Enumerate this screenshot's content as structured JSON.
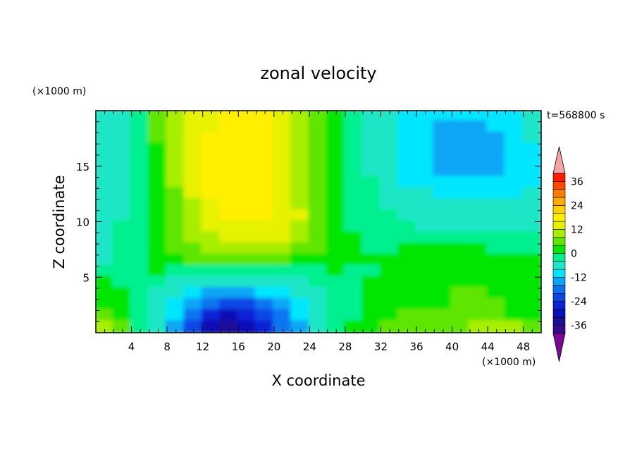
{
  "chart_data": {
    "type": "heatmap",
    "title": "zonal velocity",
    "xlabel": "X coordinate",
    "ylabel": "Z coordinate",
    "x_unit_label": "(×1000 m)",
    "y_unit_label": "(×1000 m)",
    "time_label": "t=568800 s",
    "xlim": [
      0,
      50
    ],
    "ylim": [
      0,
      20
    ],
    "x_ticks": [
      4,
      8,
      12,
      16,
      20,
      24,
      28,
      32,
      36,
      40,
      44,
      48
    ],
    "y_ticks": [
      5,
      10,
      15
    ],
    "x_tick_labels": [
      "4",
      "8",
      "12",
      "16",
      "20",
      "24",
      "28",
      "32",
      "36",
      "40",
      "44",
      "48"
    ],
    "y_tick_labels": [
      "5",
      "10",
      "15"
    ],
    "colorbar": {
      "levels": [
        -40,
        -36,
        -32,
        -28,
        -24,
        -20,
        -16,
        -12,
        -8,
        -4,
        0,
        4,
        8,
        12,
        16,
        20,
        24,
        28,
        32,
        36,
        40
      ],
      "tick_values": [
        -36,
        -24,
        -12,
        0,
        12,
        24,
        36
      ],
      "tick_labels": [
        "-36",
        "-24",
        "-12",
        "0",
        "12",
        "24",
        "36"
      ],
      "colors": [
        "#3a0a8c",
        "#1c0c96",
        "#0a10b8",
        "#0a22d6",
        "#0a46e6",
        "#0a74f0",
        "#0aa6f6",
        "#00e6ff",
        "#1ee6c6",
        "#00f090",
        "#00e600",
        "#5ee600",
        "#a8ee00",
        "#e6f200",
        "#fff000",
        "#ffd200",
        "#ffaa00",
        "#ff7a00",
        "#ff4a00",
        "#ff1a00"
      ],
      "under_color": "#7a0a96",
      "over_color": "#f5a3a3"
    },
    "field": {
      "description_of_rows": "z values from 19.5 down to 0.5, columns x from 1 to 49 step 2",
      "x": [
        1,
        3,
        5,
        7,
        9,
        11,
        13,
        15,
        17,
        19,
        21,
        23,
        25,
        27,
        29,
        31,
        33,
        35,
        37,
        39,
        41,
        43,
        45,
        47,
        49
      ],
      "z": [
        19.5,
        18.5,
        17.5,
        16.5,
        15.5,
        14.5,
        13.5,
        12.5,
        11.5,
        10.5,
        9.5,
        8.5,
        7.5,
        6.5,
        5.5,
        4.5,
        3.5,
        2.5,
        1.5,
        0.5
      ],
      "values": [
        [
          -7,
          -6,
          -2,
          4,
          8,
          12,
          14,
          16,
          16,
          16,
          14,
          10,
          4,
          0,
          -2,
          -6,
          -8,
          -10,
          -12,
          -12,
          -12,
          -12,
          -10,
          -9,
          -8
        ],
        [
          -7,
          -6,
          -2,
          4,
          9,
          13,
          15,
          17,
          17,
          16,
          14,
          10,
          4,
          0,
          -2,
          -6,
          -8,
          -10,
          -12,
          -14,
          -14,
          -14,
          -12,
          -10,
          -8
        ],
        [
          -7,
          -6,
          -2,
          4,
          9,
          13,
          16,
          18,
          18,
          16,
          14,
          10,
          4,
          0,
          -2,
          -6,
          -8,
          -10,
          -12,
          -14,
          -14,
          -14,
          -13,
          -11,
          -8
        ],
        [
          -8,
          -6,
          -2,
          3,
          9,
          13,
          16,
          18,
          18,
          17,
          14,
          10,
          4,
          0,
          -2,
          -5,
          -8,
          -10,
          -12,
          -14,
          -15,
          -15,
          -14,
          -12,
          -9
        ],
        [
          -8,
          -6,
          -2,
          3,
          8,
          13,
          17,
          19,
          18,
          17,
          14,
          10,
          4,
          0,
          -2,
          -5,
          -8,
          -10,
          -12,
          -14,
          -15,
          -15,
          -14,
          -12,
          -9
        ],
        [
          -8,
          -6,
          -2,
          2,
          8,
          13,
          17,
          18,
          18,
          17,
          14,
          10,
          4,
          0,
          -2,
          -5,
          -8,
          -10,
          -11,
          -13,
          -14,
          -14,
          -13,
          -12,
          -9
        ],
        [
          -8,
          -6,
          -2,
          2,
          8,
          13,
          17,
          18,
          18,
          17,
          14,
          10,
          5,
          0,
          -2,
          -4,
          -7,
          -9,
          -10,
          -11,
          -12,
          -12,
          -11,
          -10,
          -9
        ],
        [
          -8,
          -6,
          -2,
          2,
          7,
          12,
          16,
          17,
          18,
          17,
          14,
          10,
          5,
          0,
          -2,
          -4,
          -6,
          -7,
          -8,
          -9,
          -10,
          -10,
          -10,
          -9,
          -8
        ],
        [
          -8,
          -5,
          -1,
          2,
          6,
          11,
          15,
          17,
          18,
          17,
          15,
          11,
          5,
          1,
          -2,
          -4,
          -5,
          -6,
          -7,
          -8,
          -8,
          -8,
          -8,
          -8,
          -8
        ],
        [
          -7,
          -5,
          -1,
          2,
          6,
          10,
          14,
          16,
          18,
          17,
          15,
          12,
          6,
          1,
          -2,
          -3,
          -4,
          -5,
          -6,
          -6,
          -7,
          -7,
          -7,
          -7,
          -7
        ],
        [
          -6,
          -4,
          -1,
          2,
          5,
          9,
          12,
          14,
          15,
          15,
          14,
          11,
          6,
          2,
          -1,
          -3,
          -4,
          -4,
          -5,
          -5,
          -5,
          -5,
          -5,
          -5,
          -5
        ],
        [
          -6,
          -4,
          -1,
          3,
          5,
          8,
          10,
          12,
          13,
          13,
          12,
          10,
          6,
          2,
          0,
          -2,
          -3,
          -3,
          -3,
          -3,
          -3,
          -3,
          -3,
          -3,
          -3
        ],
        [
          -6,
          -4,
          -1,
          3,
          5,
          6,
          8,
          9,
          10,
          10,
          9,
          7,
          5,
          2,
          0,
          -1,
          -1,
          0,
          0,
          0,
          0,
          0,
          -1,
          -1,
          -2
        ],
        [
          -6,
          -4,
          -2,
          2,
          3,
          4,
          5,
          5,
          5,
          5,
          4,
          3,
          2,
          1,
          0,
          0,
          1,
          2,
          2,
          2,
          2,
          2,
          1,
          0,
          0
        ],
        [
          -4,
          -4,
          -3,
          0,
          -1,
          -2,
          -3,
          -3,
          -3,
          -3,
          -3,
          -2,
          -1,
          0,
          -1,
          -1,
          2,
          3,
          3,
          3,
          3,
          3,
          2,
          1,
          0
        ],
        [
          2,
          -2,
          -4,
          -4,
          -6,
          -7,
          -8,
          -8,
          -8,
          -7,
          -6,
          -5,
          -4,
          -3,
          -2,
          0,
          2,
          3,
          3,
          3,
          3,
          3,
          2,
          1,
          0
        ],
        [
          3,
          0,
          -3,
          -5,
          -8,
          -11,
          -13,
          -14,
          -13,
          -12,
          -10,
          -8,
          -6,
          -4,
          -2,
          0,
          2,
          3,
          3,
          3,
          4,
          4,
          3,
          2,
          1
        ],
        [
          3,
          1,
          -3,
          -6,
          -10,
          -16,
          -20,
          -22,
          -21,
          -18,
          -14,
          -10,
          -7,
          -4,
          -1,
          1,
          2,
          3,
          3,
          3,
          4,
          6,
          5,
          3,
          1
        ],
        [
          5,
          2,
          -3,
          -6,
          -12,
          -20,
          -26,
          -30,
          -28,
          -24,
          -18,
          -12,
          -8,
          -4,
          -1,
          2,
          3,
          4,
          4,
          4,
          5,
          6,
          5,
          3,
          2
        ],
        [
          8,
          4,
          -3,
          -6,
          -14,
          -22,
          -30,
          -34,
          -32,
          -26,
          -20,
          -13,
          -8,
          -4,
          0,
          3,
          4,
          6,
          6,
          6,
          7,
          8,
          10,
          8,
          4
        ]
      ]
    }
  }
}
